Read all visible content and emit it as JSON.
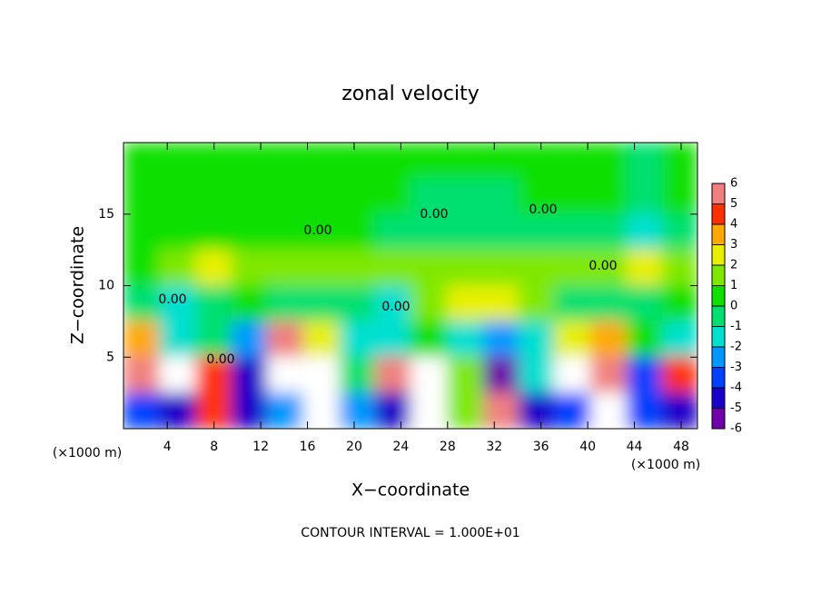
{
  "chart_data": {
    "type": "heatmap",
    "title": "zonal velocity",
    "xlabel": "X−coordinate",
    "ylabel": "Z−coordinate",
    "x_unit": "(×1000 m)",
    "y_unit": "(×1000 m)",
    "footer": "CONTOUR INTERVAL = 1.000E+01",
    "contour_label": "0.00",
    "xlim": [
      0.25,
      49.4
    ],
    "ylim": [
      0,
      20
    ],
    "xticks": [
      4,
      8,
      12,
      16,
      20,
      24,
      28,
      32,
      36,
      40,
      44,
      48
    ],
    "yticks": [
      5,
      10,
      15
    ],
    "x": [
      1.8,
      4.9,
      8.0,
      11.0,
      14.1,
      17.2,
      20.3,
      23.3,
      26.4,
      29.5,
      32.6,
      35.6,
      38.7,
      41.8,
      44.9,
      47.9
    ],
    "y": [
      18.75,
      16.25,
      13.75,
      11.25,
      8.75,
      6.25,
      3.75,
      1.25
    ],
    "values": [
      [
        0.5,
        0.5,
        0.5,
        0.5,
        0.5,
        0.5,
        0.5,
        0.5,
        0.5,
        0.5,
        0.5,
        0.5,
        0.5,
        0.5,
        -0.5,
        0.5
      ],
      [
        0.5,
        0.5,
        0.5,
        0.5,
        0.5,
        0.5,
        0.5,
        0.5,
        -0.5,
        -0.5,
        -0.5,
        0.5,
        0.5,
        0.5,
        -0.5,
        0.5
      ],
      [
        0.5,
        0.5,
        0.5,
        0.5,
        0.5,
        0.5,
        0.5,
        -0.5,
        -0.5,
        -0.5,
        -0.5,
        -0.5,
        -0.5,
        -0.5,
        -1.5,
        -0.5
      ],
      [
        0.5,
        1.5,
        2.5,
        1.5,
        1.5,
        1.5,
        1.5,
        1.5,
        1.5,
        1.5,
        1.5,
        1.5,
        1.5,
        1.5,
        2.5,
        1.5
      ],
      [
        -0.5,
        -1.5,
        -0.5,
        0.5,
        -0.5,
        -0.5,
        -0.5,
        -1.5,
        1.5,
        2.5,
        2.5,
        1.5,
        -0.5,
        -0.5,
        -0.5,
        0.5
      ],
      [
        3.5,
        -1.5,
        -0.5,
        -2.5,
        5.5,
        2.5,
        -1.5,
        -1.5,
        0.5,
        -1.5,
        -2.5,
        -1.5,
        2.5,
        3.5,
        0.5,
        -1.5
      ],
      [
        5.5,
        8,
        4.5,
        -4.5,
        8,
        8,
        -0.5,
        5.5,
        8,
        1.5,
        -5.5,
        -1.5,
        8,
        5.5,
        -3.5,
        4.5
      ],
      [
        -3.5,
        -4.5,
        4.5,
        -4.5,
        -2.5,
        8,
        -2.5,
        -4.5,
        8,
        1.5,
        5.5,
        -4.5,
        -3.5,
        8,
        -3.5,
        -4.5
      ]
    ],
    "colorbar": {
      "levels": [
        -6,
        -5,
        -4,
        -3,
        -2,
        -1,
        0,
        1,
        2,
        3,
        4,
        5,
        6
      ],
      "colors": [
        "#7000a8",
        "#1a00c8",
        "#0040ff",
        "#0098ff",
        "#00e0d0",
        "#00e070",
        "#10e000",
        "#80e800",
        "#e8f000",
        "#ffa800",
        "#ff3000",
        "#f08080"
      ],
      "over_color": "#ffffff",
      "under_color": "#7000a8"
    }
  }
}
